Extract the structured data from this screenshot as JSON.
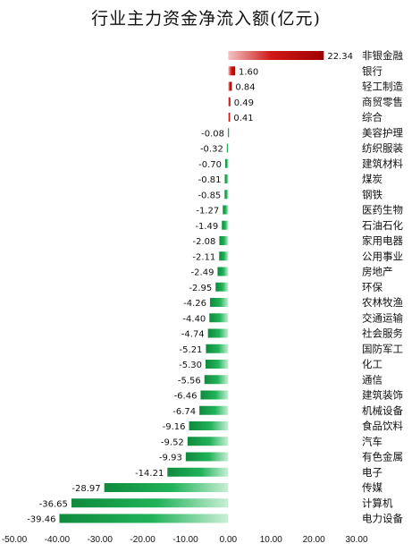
{
  "chart_data": {
    "type": "bar",
    "orientation": "horizontal",
    "title": "行业主力资金净流入额(亿元)",
    "categories": [
      "非银金融",
      "银行",
      "轻工制造",
      "商贸零售",
      "综合",
      "美容护理",
      "纺织服装",
      "建筑材料",
      "煤炭",
      "钢铁",
      "医药生物",
      "石油石化",
      "家用电器",
      "公用事业",
      "房地产",
      "环保",
      "农林牧渔",
      "交通运输",
      "社会服务",
      "国防军工",
      "化工",
      "通信",
      "建筑装饰",
      "机械设备",
      "食品饮料",
      "汽车",
      "有色金属",
      "电子",
      "传媒",
      "计算机",
      "电力设备"
    ],
    "values": [
      22.34,
      1.6,
      0.84,
      0.49,
      0.41,
      -0.08,
      -0.32,
      -0.7,
      -0.81,
      -0.85,
      -1.27,
      -1.49,
      -2.08,
      -2.11,
      -2.49,
      -2.95,
      -4.26,
      -4.4,
      -4.74,
      -5.21,
      -5.3,
      -5.56,
      -6.46,
      -6.74,
      -9.16,
      -9.52,
      -9.93,
      -14.21,
      -28.97,
      -36.65,
      -39.46
    ],
    "value_labels": [
      "22.34",
      "1.60",
      "0.84",
      "0.49",
      "0.41",
      "-0.08",
      "-0.32",
      "-0.70",
      "-0.81",
      "-0.85",
      "-1.27",
      "-1.49",
      "-2.08",
      "-2.11",
      "-2.49",
      "-2.95",
      "-4.26",
      "-4.40",
      "-4.74",
      "-5.21",
      "-5.30",
      "-5.56",
      "-6.46",
      "-6.74",
      "-9.16",
      "-9.52",
      "-9.93",
      "-14.21",
      "-28.97",
      "-36.65",
      "-39.46"
    ],
    "xlim": [
      -50,
      30
    ],
    "x_ticks": [
      -50,
      -40,
      -30,
      -20,
      -10,
      0,
      10,
      20,
      30
    ],
    "x_tick_labels": [
      "-50.00",
      "-40.00",
      "-30.00",
      "-20.00",
      "-10.00",
      "0.00",
      "10.00",
      "20.00",
      "30.00"
    ],
    "colors": {
      "positive": "#c00000",
      "negative": "#1aa34f"
    },
    "grid": false
  }
}
